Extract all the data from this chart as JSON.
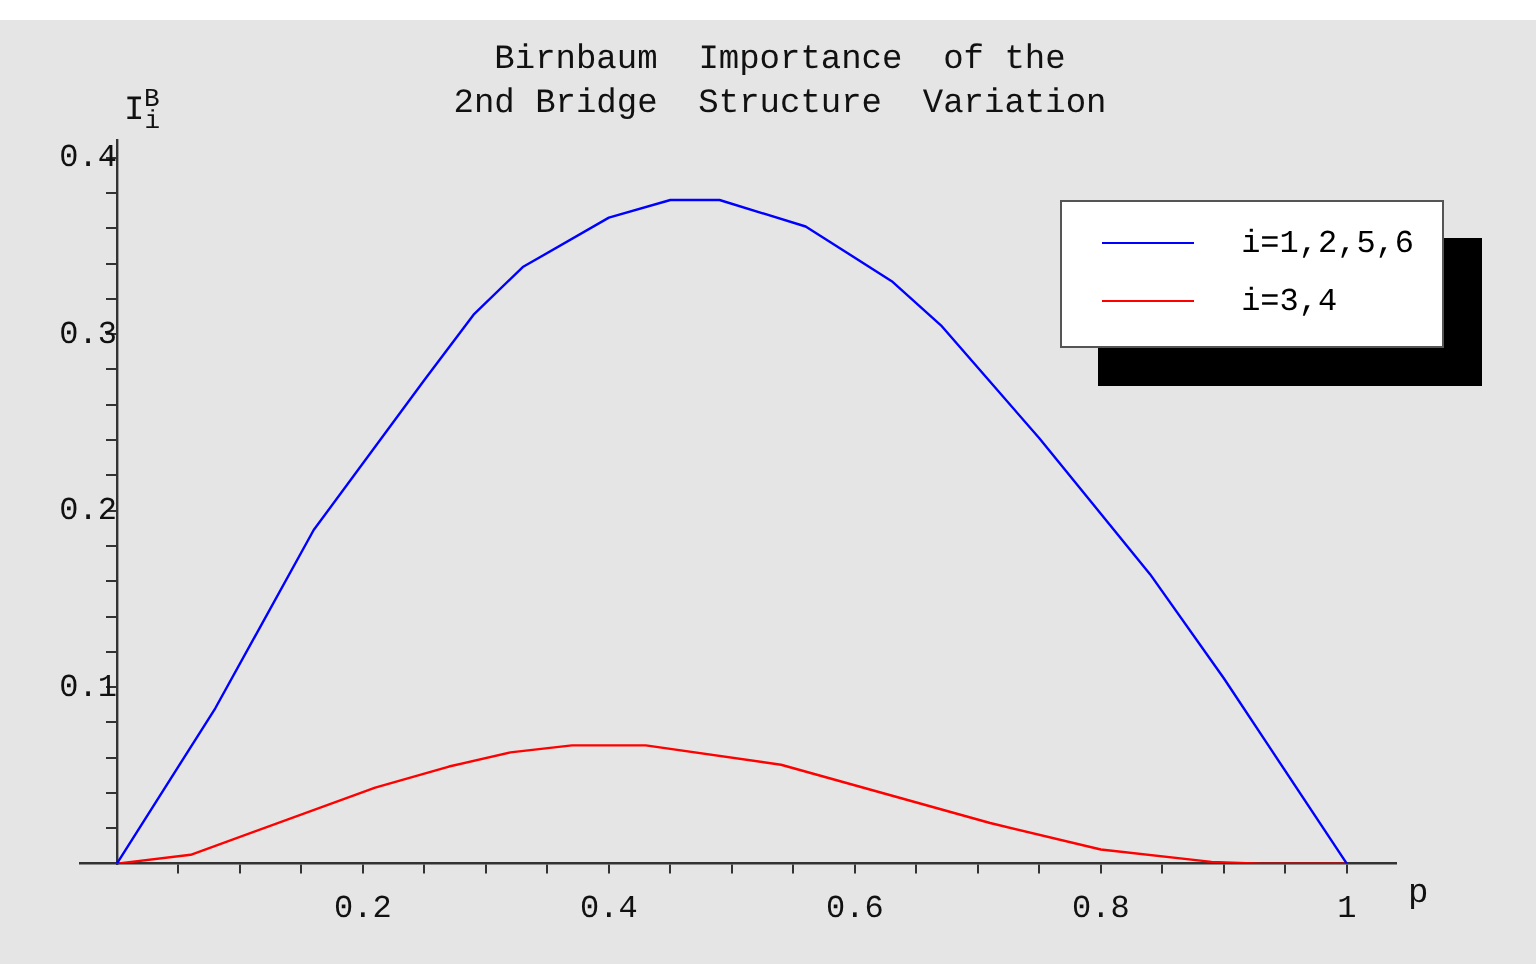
{
  "chart_data": {
    "type": "line",
    "title": [
      "Birnbaum  Importance  of the",
      "2nd Bridge  Structure  Variation"
    ],
    "ylabel": "I$_{i}$$^{B}$",
    "xlabel": "p",
    "series": [
      {
        "name": "i=1,2,5,6",
        "color": "#0000ff",
        "x": [
          0,
          0.08,
          0.16,
          0.25,
          0.29,
          0.33,
          0.4,
          0.45,
          0.49,
          0.56,
          0.63,
          0.67,
          0.71,
          0.75,
          0.84,
          0.9,
          1
        ],
        "values": [
          0,
          0.088,
          0.189,
          0.274,
          0.311,
          0.338,
          0.366,
          0.376,
          0.376,
          0.361,
          0.33,
          0.305,
          0.273,
          0.241,
          0.164,
          0.105,
          0
        ]
      },
      {
        "name": "i=3,4",
        "color": "#ff0000",
        "x": [
          0,
          0.06,
          0.21,
          0.27,
          0.32,
          0.37,
          0.43,
          0.54,
          0.71,
          0.8,
          0.89,
          0.93,
          1
        ],
        "values": [
          0,
          0.005,
          0.043,
          0.055,
          0.063,
          0.067,
          0.067,
          0.056,
          0.023,
          0.008,
          0.001,
          0,
          0
        ]
      }
    ],
    "xlim": [
      -0.03,
      1.04
    ],
    "ylim": [
      0,
      0.41
    ],
    "xticks": [
      {
        "value": 0.05,
        "label": null
      },
      {
        "value": 0.1,
        "label": null
      },
      {
        "value": 0.15,
        "label": null
      },
      0.2,
      {
        "value": 0.25,
        "label": null
      },
      {
        "value": 0.3,
        "label": null
      },
      {
        "value": 0.35,
        "label": null
      },
      0.4,
      {
        "value": 0.45,
        "label": null
      },
      {
        "value": 0.5,
        "label": null
      },
      {
        "value": 0.55,
        "label": null
      },
      0.6,
      {
        "value": 0.65,
        "label": null
      },
      {
        "value": 0.7,
        "label": null
      },
      {
        "value": 0.75,
        "label": null
      },
      0.8,
      {
        "value": 0.85,
        "label": null
      },
      {
        "value": 0.9,
        "label": null
      },
      {
        "value": 0.95,
        "label": null
      },
      {
        "value": 1,
        "label": "1"
      }
    ],
    "yticks": [
      {
        "value": 0.02,
        "label": null
      },
      {
        "value": 0.04,
        "label": null
      },
      {
        "value": 0.06,
        "label": null
      },
      {
        "value": 0.08,
        "label": null
      },
      0.1,
      {
        "value": 0.12,
        "label": null
      },
      {
        "value": 0.14,
        "label": null
      },
      {
        "value": 0.16,
        "label": null
      },
      {
        "value": 0.18,
        "label": null
      },
      0.2,
      {
        "value": 0.22,
        "label": null
      },
      {
        "value": 0.24,
        "label": null
      },
      {
        "value": 0.26,
        "label": null
      },
      {
        "value": 0.28,
        "label": null
      },
      0.3,
      {
        "value": 0.32,
        "label": null
      },
      {
        "value": 0.34,
        "label": null
      },
      {
        "value": 0.36,
        "label": null
      },
      {
        "value": 0.38,
        "label": null
      },
      0.4
    ],
    "grid": false,
    "legend": "top right",
    "marker": "none",
    "line_style": "solid"
  }
}
